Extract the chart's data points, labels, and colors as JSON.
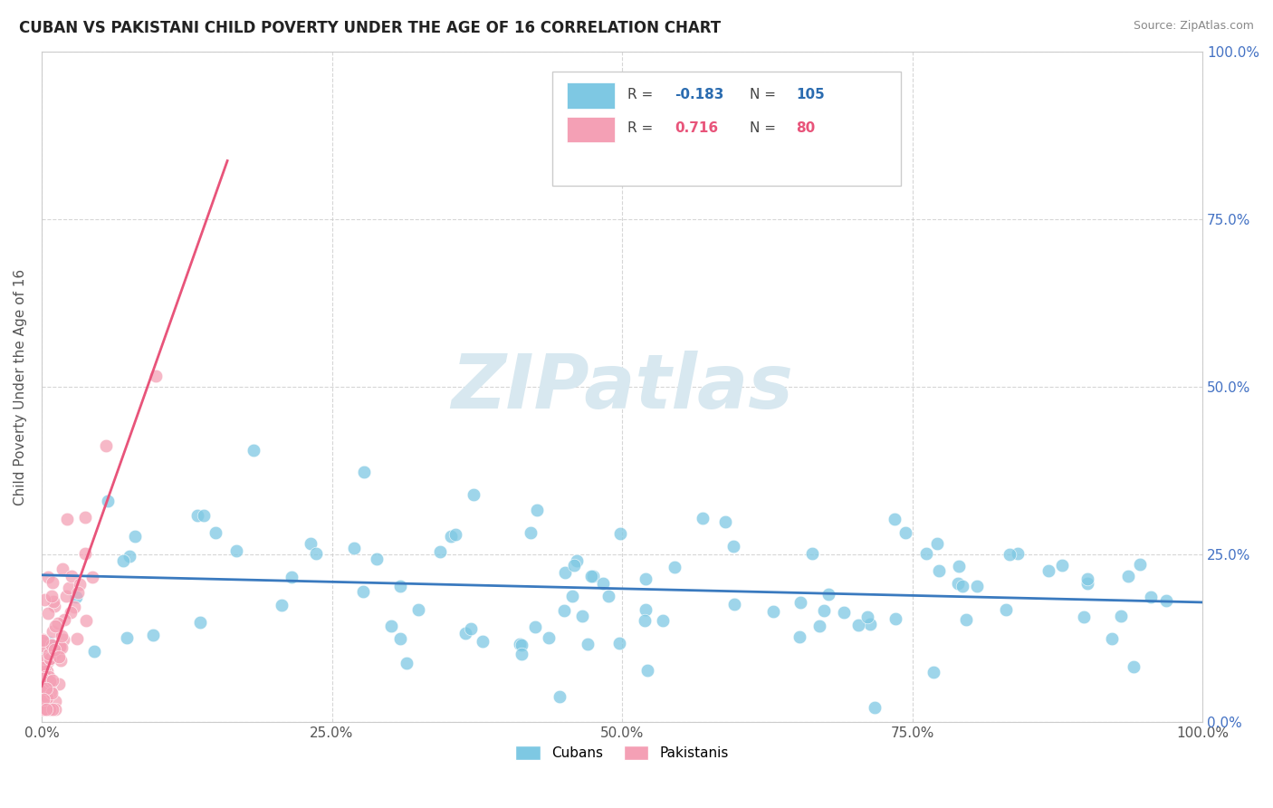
{
  "title": "CUBAN VS PAKISTANI CHILD POVERTY UNDER THE AGE OF 16 CORRELATION CHART",
  "source": "Source: ZipAtlas.com",
  "ylabel": "Child Poverty Under the Age of 16",
  "xlim": [
    0.0,
    1.0
  ],
  "ylim": [
    0.0,
    1.0
  ],
  "legend_r_cuban": "-0.183",
  "legend_n_cuban": "105",
  "legend_r_pakis": "0.716",
  "legend_n_pakis": "80",
  "cuban_color": "#7ec8e3",
  "pakistani_color": "#f4a0b5",
  "cuban_line_color": "#3a7abf",
  "pakistani_line_color": "#e8547a",
  "title_color": "#222222",
  "source_color": "#888888",
  "ylabel_color": "#555555",
  "tick_color": "#555555",
  "right_tick_color": "#4472c4",
  "grid_color": "#cccccc",
  "watermark_color": "#d8e8f0",
  "legend_box_color": "#f0f0f0",
  "legend_box_edge": "#cccccc"
}
